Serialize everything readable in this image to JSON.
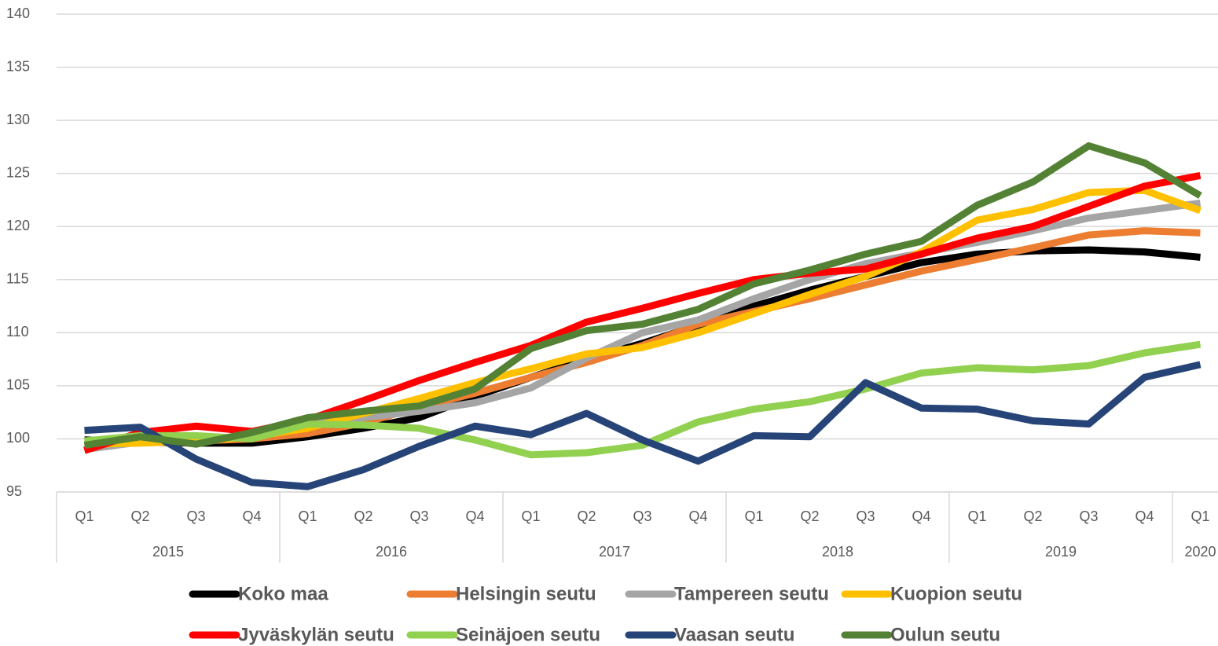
{
  "chart_data": {
    "type": "line",
    "categories": [
      "Q1",
      "Q2",
      "Q3",
      "Q4",
      "Q1",
      "Q2",
      "Q3",
      "Q4",
      "Q1",
      "Q2",
      "Q3",
      "Q4",
      "Q1",
      "Q2",
      "Q3",
      "Q4",
      "Q1",
      "Q2",
      "Q3",
      "Q4",
      "Q1"
    ],
    "years": [
      "2015",
      "2015",
      "2015",
      "2015",
      "2016",
      "2016",
      "2016",
      "2016",
      "2017",
      "2017",
      "2017",
      "2017",
      "2018",
      "2018",
      "2018",
      "2018",
      "2019",
      "2019",
      "2019",
      "2019",
      "2020"
    ],
    "ylim": [
      95,
      140
    ],
    "yticks": [
      95,
      100,
      105,
      110,
      115,
      120,
      125,
      130,
      135,
      140
    ],
    "grid": true,
    "legend": "bottom",
    "series": [
      {
        "name": "Koko maa",
        "color": "#000000",
        "values": [
          99.9,
          99.7,
          99.6,
          99.6,
          100.2,
          101,
          102,
          104,
          105.8,
          107.5,
          109,
          110.7,
          112.5,
          114,
          115.3,
          116.6,
          117.4,
          117.7,
          117.8,
          117.6,
          117.1
        ]
      },
      {
        "name": "Helsingin seutu",
        "color": "#ed7d31",
        "values": [
          99.5,
          99.7,
          99.8,
          100,
          100.5,
          101.5,
          103,
          104.3,
          105.8,
          107.2,
          108.8,
          110.8,
          112,
          113.2,
          114.5,
          115.8,
          116.9,
          118,
          119.2,
          119.6,
          119.4
        ]
      },
      {
        "name": "Tampereen seutu",
        "color": "#a5a5a5",
        "values": [
          99,
          99.7,
          99.8,
          100.2,
          101.4,
          102,
          102.6,
          103.4,
          104.8,
          107.6,
          110,
          111.2,
          113.2,
          115,
          116.5,
          117.5,
          118.5,
          119.6,
          120.8,
          121.5,
          122.2
        ]
      },
      {
        "name": "Kuopion seutu",
        "color": "#ffc000",
        "values": [
          99.5,
          99.6,
          99.8,
          100.2,
          101,
          102.4,
          103.8,
          105.3,
          106.6,
          108,
          108.6,
          110,
          111.8,
          113.6,
          115.3,
          117.6,
          120.6,
          121.6,
          123.2,
          123.4,
          121.5
        ]
      },
      {
        "name": "Jyväskylän seutu",
        "color": "#ff0000",
        "values": [
          98.9,
          100.6,
          101.2,
          100.7,
          101.8,
          103.6,
          105.5,
          107.2,
          108.8,
          111,
          112.3,
          113.7,
          115,
          115.6,
          116,
          117.4,
          118.9,
          120,
          121.9,
          123.8,
          124.8
        ]
      },
      {
        "name": "Seinäjoen seutu",
        "color": "#92d050",
        "values": [
          99.8,
          100.3,
          100.3,
          100,
          101.4,
          101.3,
          101,
          99.9,
          98.5,
          98.7,
          99.4,
          101.6,
          102.8,
          103.5,
          104.7,
          106.2,
          106.7,
          106.5,
          106.9,
          108.1,
          108.9
        ]
      },
      {
        "name": "Vaasan seutu",
        "color": "#264478",
        "values": [
          100.8,
          101.1,
          98.1,
          95.9,
          95.5,
          97.1,
          99.3,
          101.2,
          100.4,
          102.4,
          99.9,
          97.9,
          100.3,
          100.2,
          105.3,
          102.9,
          102.8,
          101.7,
          101.4,
          105.8,
          107
        ]
      },
      {
        "name": "Oulun seutu",
        "color": "#548235",
        "values": [
          99.4,
          100.2,
          99.5,
          100.6,
          102,
          102.6,
          103.1,
          104.7,
          108.5,
          110.2,
          110.8,
          112.2,
          114.6,
          115.9,
          117.4,
          118.6,
          122,
          124.2,
          127.6,
          126,
          122.9
        ]
      }
    ]
  }
}
